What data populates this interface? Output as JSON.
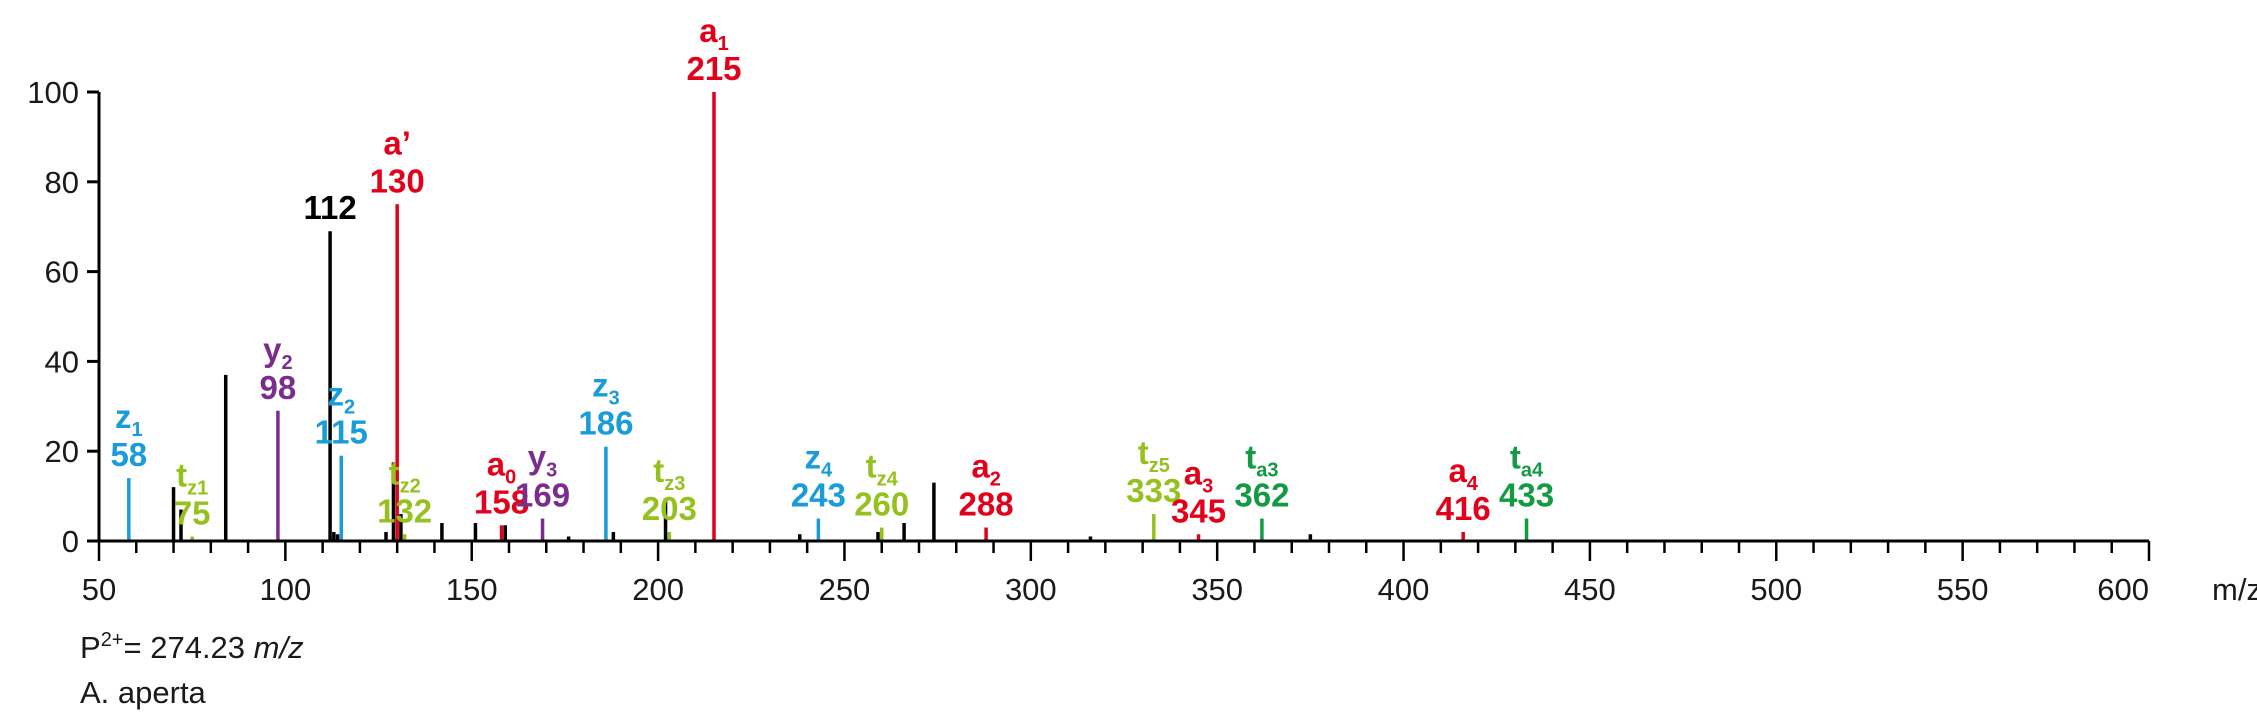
{
  "chart_data": {
    "type": "bar",
    "title": "",
    "xlabel": "m/z",
    "ylabel": "",
    "xlim": [
      50,
      600
    ],
    "ylim": [
      0,
      100
    ],
    "x_ticks": [
      50,
      100,
      150,
      200,
      250,
      300,
      350,
      400,
      450,
      500,
      550,
      600
    ],
    "y_ticks": [
      0,
      20,
      40,
      60,
      80,
      100
    ],
    "colors": {
      "black": "#000000",
      "red": "#e2001a",
      "blue": "#1a9cd8",
      "purple": "#7b2d8e",
      "lime": "#95c11f",
      "green": "#139a43"
    },
    "annotated_peaks": [
      {
        "x": 58,
        "y": 14,
        "ion": "z",
        "sub": "1",
        "label": "58",
        "color": "#1a9cd8"
      },
      {
        "x": 75,
        "y": 1,
        "ion": "t",
        "sub": "z1",
        "label": "75",
        "color": "#95c11f"
      },
      {
        "x": 98,
        "y": 29,
        "ion": "y",
        "sub": "2",
        "label": "98",
        "color": "#7b2d8e"
      },
      {
        "x": 112,
        "y": 69,
        "ion": "",
        "sub": "",
        "label": "112",
        "color": "#000000"
      },
      {
        "x": 115,
        "y": 19,
        "ion": "z",
        "sub": "2",
        "label": "115",
        "color": "#1a9cd8"
      },
      {
        "x": 130,
        "y": 75,
        "ion": "a’",
        "sub": "",
        "label": "130",
        "color": "#e2001a"
      },
      {
        "x": 132,
        "y": 1.5,
        "ion": "t",
        "sub": "z2",
        "label": "132",
        "color": "#95c11f"
      },
      {
        "x": 158,
        "y": 3.5,
        "ion": "a",
        "sub": "0",
        "label": "158",
        "color": "#e2001a"
      },
      {
        "x": 169,
        "y": 5,
        "ion": "y",
        "sub": "3",
        "label": "169",
        "color": "#7b2d8e"
      },
      {
        "x": 186,
        "y": 21,
        "ion": "z",
        "sub": "3",
        "label": "186",
        "color": "#1a9cd8"
      },
      {
        "x": 203,
        "y": 2,
        "ion": "t",
        "sub": "z3",
        "label": "203",
        "color": "#95c11f"
      },
      {
        "x": 215,
        "y": 100,
        "ion": "a",
        "sub": "1",
        "label": "215",
        "color": "#e2001a"
      },
      {
        "x": 243,
        "y": 5,
        "ion": "z",
        "sub": "4",
        "label": "243",
        "color": "#1a9cd8"
      },
      {
        "x": 260,
        "y": 3,
        "ion": "t",
        "sub": "z4",
        "label": "260",
        "color": "#95c11f"
      },
      {
        "x": 288,
        "y": 3,
        "ion": "a",
        "sub": "2",
        "label": "288",
        "color": "#e2001a"
      },
      {
        "x": 333,
        "y": 6,
        "ion": "t",
        "sub": "z5",
        "label": "333",
        "color": "#95c11f"
      },
      {
        "x": 345,
        "y": 1.5,
        "ion": "a",
        "sub": "3",
        "label": "345",
        "color": "#e2001a"
      },
      {
        "x": 362,
        "y": 5,
        "ion": "t",
        "sub": "a3",
        "label": "362",
        "color": "#139a43"
      },
      {
        "x": 416,
        "y": 2,
        "ion": "a",
        "sub": "4",
        "label": "416",
        "color": "#e2001a"
      },
      {
        "x": 433,
        "y": 5,
        "ion": "t",
        "sub": "a4",
        "label": "433",
        "color": "#139a43"
      }
    ],
    "unlabeled_peaks": [
      {
        "x": 70,
        "y": 12
      },
      {
        "x": 72,
        "y": 7
      },
      {
        "x": 84,
        "y": 37
      },
      {
        "x": 113,
        "y": 2
      },
      {
        "x": 114,
        "y": 1.5
      },
      {
        "x": 127,
        "y": 2
      },
      {
        "x": 129,
        "y": 17.5
      },
      {
        "x": 131,
        "y": 6
      },
      {
        "x": 142,
        "y": 4
      },
      {
        "x": 151,
        "y": 4
      },
      {
        "x": 159,
        "y": 3.5
      },
      {
        "x": 176,
        "y": 1
      },
      {
        "x": 188,
        "y": 2
      },
      {
        "x": 202,
        "y": 9.5
      },
      {
        "x": 238,
        "y": 1.5
      },
      {
        "x": 259,
        "y": 2
      },
      {
        "x": 266,
        "y": 4
      },
      {
        "x": 274,
        "y": 13
      },
      {
        "x": 316,
        "y": 1
      },
      {
        "x": 375,
        "y": 1.5
      }
    ]
  },
  "precursor": {
    "prefix": "P",
    "charge": "2+",
    "value": "= 274.23 ",
    "unit": "m/z"
  },
  "sample": "A. aperta"
}
